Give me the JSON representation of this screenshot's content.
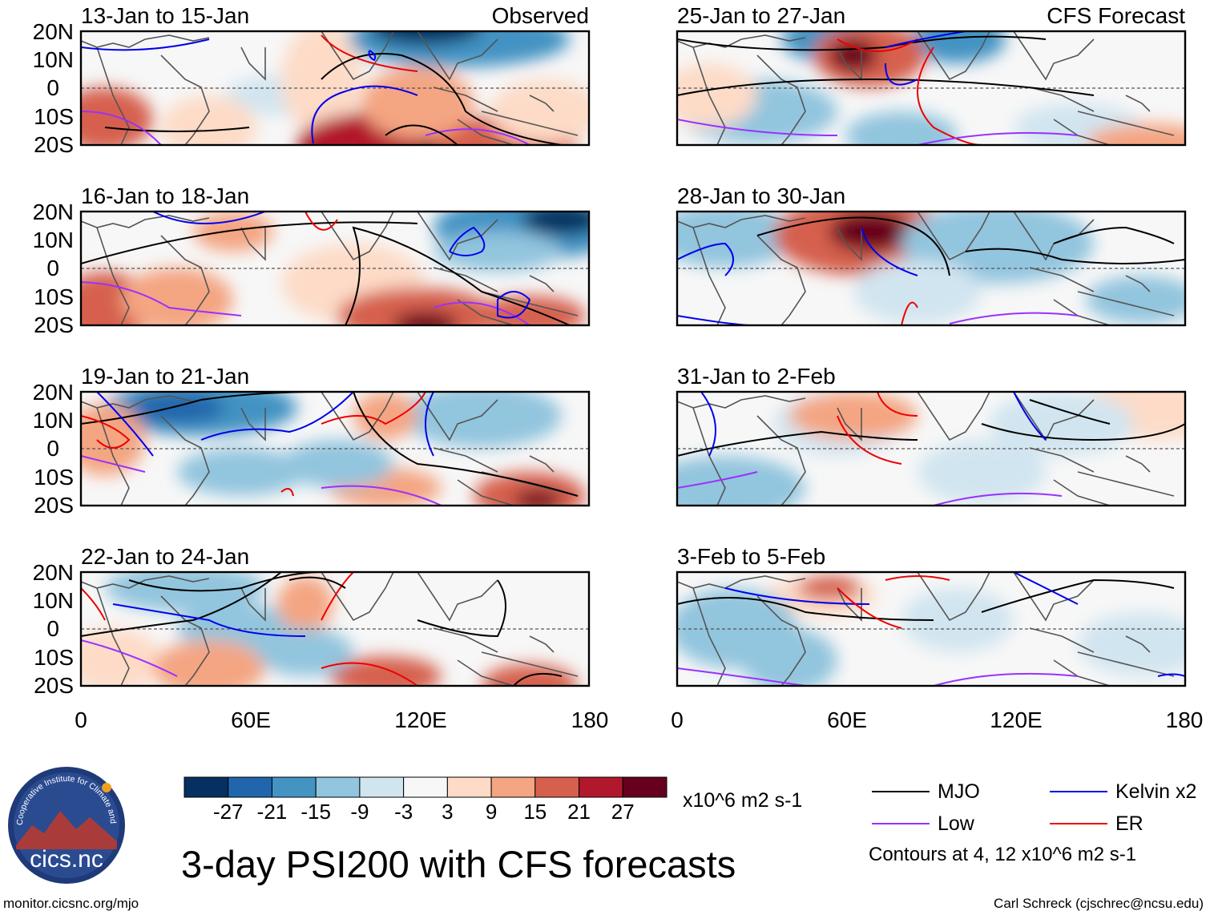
{
  "figure": {
    "title": "3-day PSI200 with CFS forecasts",
    "credit_left": "monitor.cicsnc.org/mjo",
    "credit_right": "Carl Schreck (cjschrec@ncsu.edu)",
    "logo": {
      "text": "cics.nc",
      "arc_text": "Cooperative Institute for Climate and Satellites"
    }
  },
  "axes": {
    "lat_labels": [
      "20N",
      "10N",
      "0",
      "10S",
      "20S"
    ],
    "lon_labels": [
      "0",
      "60E",
      "120E",
      "180"
    ]
  },
  "panels": [
    {
      "title": "13-Jan to 15-Jan",
      "tag": "Observed"
    },
    {
      "title": "16-Jan to 18-Jan",
      "tag": ""
    },
    {
      "title": "19-Jan to 21-Jan",
      "tag": ""
    },
    {
      "title": "22-Jan to 24-Jan",
      "tag": ""
    },
    {
      "title": "25-Jan to 27-Jan",
      "tag": "CFS Forecast"
    },
    {
      "title": "28-Jan to 30-Jan",
      "tag": ""
    },
    {
      "title": "31-Jan to 2-Feb",
      "tag": ""
    },
    {
      "title": "3-Feb to 5-Feb",
      "tag": ""
    }
  ],
  "colorbar": {
    "labels": [
      "-27",
      "-21",
      "-15",
      "-9",
      "-3",
      "3",
      "9",
      "15",
      "21",
      "27"
    ],
    "colors": [
      "#053061",
      "#2166ac",
      "#4393c3",
      "#92c5de",
      "#d1e5f0",
      "#f7f7f7",
      "#fddbc7",
      "#f4a582",
      "#d6604d",
      "#b2182b",
      "#67001f"
    ],
    "units": "x10^6 m2 s-1"
  },
  "legend": {
    "items": [
      {
        "label": "MJO",
        "color": "#000000"
      },
      {
        "label": "Kelvin x2",
        "color": "#0000ee"
      },
      {
        "label": "Low",
        "color": "#9b30ff"
      },
      {
        "label": "ER",
        "color": "#ee0000"
      }
    ],
    "note": "Contours at 4, 12 x10^6 m2 s-1"
  },
  "colors": {
    "map_line": "#555555",
    "equator": "#555555",
    "frame": "#000000"
  }
}
